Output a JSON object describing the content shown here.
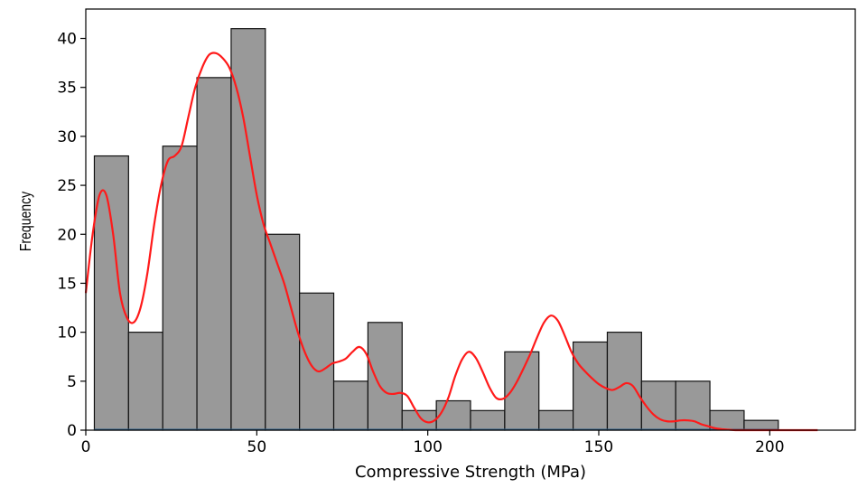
{
  "chart_data": {
    "type": "bar",
    "xlabel": "Compressive Strength (MPa)",
    "ylabel": "Frequency",
    "xlim": [
      0,
      225
    ],
    "ylim": [
      0,
      43
    ],
    "grid": false,
    "bar_color": "#999999",
    "bar_edge_color": "#111111",
    "kde_color": "#ff1a1a",
    "baseline_color": "#2c5f8a",
    "x_ticks": [
      0,
      50,
      100,
      150,
      200
    ],
    "y_ticks": [
      0,
      5,
      10,
      15,
      20,
      25,
      30,
      35,
      40
    ],
    "bins": [
      {
        "start": 2.5,
        "end": 12.5,
        "count": 28
      },
      {
        "start": 12.5,
        "end": 22.5,
        "count": 10
      },
      {
        "start": 22.5,
        "end": 32.5,
        "count": 29
      },
      {
        "start": 32.5,
        "end": 42.5,
        "count": 36
      },
      {
        "start": 42.5,
        "end": 52.5,
        "count": 41
      },
      {
        "start": 52.5,
        "end": 62.5,
        "count": 20
      },
      {
        "start": 62.5,
        "end": 72.5,
        "count": 14
      },
      {
        "start": 72.5,
        "end": 82.5,
        "count": 5
      },
      {
        "start": 82.5,
        "end": 92.5,
        "count": 11
      },
      {
        "start": 92.5,
        "end": 102.5,
        "count": 2
      },
      {
        "start": 102.5,
        "end": 112.5,
        "count": 3
      },
      {
        "start": 112.5,
        "end": 122.5,
        "count": 2
      },
      {
        "start": 122.5,
        "end": 132.5,
        "count": 8
      },
      {
        "start": 132.5,
        "end": 142.5,
        "count": 2
      },
      {
        "start": 142.5,
        "end": 152.5,
        "count": 9
      },
      {
        "start": 152.5,
        "end": 162.5,
        "count": 10
      },
      {
        "start": 162.5,
        "end": 172.5,
        "count": 5
      },
      {
        "start": 172.5,
        "end": 182.5,
        "count": 5
      },
      {
        "start": 182.5,
        "end": 192.5,
        "count": 2
      },
      {
        "start": 192.5,
        "end": 202.5,
        "count": 1
      }
    ],
    "kde": {
      "x": [
        0,
        2,
        4,
        6,
        8,
        10,
        12,
        14,
        16,
        18,
        20,
        22,
        24,
        26,
        28,
        30,
        32,
        34,
        36,
        38,
        40,
        42,
        44,
        46,
        48,
        50,
        52,
        54,
        56,
        58,
        60,
        62,
        64,
        66,
        68,
        70,
        72,
        74,
        76,
        78,
        80,
        82,
        84,
        86,
        88,
        90,
        92,
        94,
        96,
        98,
        100,
        102,
        104,
        106,
        108,
        110,
        112,
        114,
        116,
        118,
        120,
        122,
        124,
        126,
        128,
        130,
        132,
        134,
        136,
        138,
        140,
        142,
        144,
        146,
        148,
        150,
        152,
        154,
        156,
        158,
        160,
        162,
        164,
        166,
        168,
        170,
        172,
        174,
        176,
        178,
        180,
        182,
        184,
        186,
        188,
        190,
        192,
        194,
        196,
        198,
        200,
        202,
        204,
        206,
        208,
        210,
        212,
        214
      ],
      "y": [
        14,
        20,
        24,
        24,
        20,
        14,
        11.5,
        11,
        12.5,
        16,
        21,
        25,
        27.5,
        28,
        29,
        32,
        35,
        37,
        38.3,
        38.5,
        38,
        37,
        35,
        32,
        28,
        24,
        21,
        19,
        17,
        15,
        12.5,
        10,
        8,
        6.6,
        6,
        6.3,
        6.8,
        7,
        7.3,
        8,
        8.5,
        7.8,
        6,
        4.5,
        3.8,
        3.7,
        3.8,
        3.5,
        2.3,
        1.2,
        0.8,
        1,
        1.8,
        3.3,
        5.5,
        7.2,
        8,
        7.4,
        6,
        4.4,
        3.3,
        3.2,
        3.8,
        4.9,
        6.3,
        7.8,
        9.5,
        11,
        11.7,
        11.2,
        9.7,
        8,
        6.8,
        6,
        5.3,
        4.7,
        4.3,
        4.1,
        4.4,
        4.8,
        4.5,
        3.4,
        2.4,
        1.6,
        1.1,
        0.9,
        0.9,
        1,
        1,
        0.9,
        0.6,
        0.4,
        0.2,
        0.1,
        0.05,
        0,
        0,
        0,
        0,
        0,
        0,
        0,
        0,
        0,
        0,
        0,
        0,
        0
      ]
    }
  }
}
